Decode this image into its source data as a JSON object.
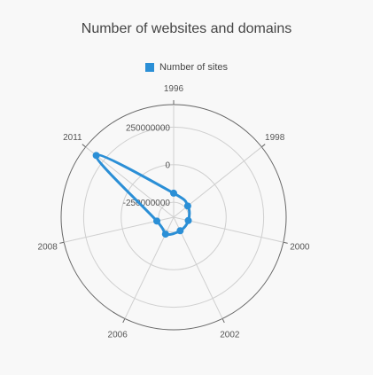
{
  "chart_data": {
    "type": "line",
    "subtype": "polar",
    "title": "Number of websites and domains",
    "categories": [
      "1996",
      "1998",
      "2000",
      "2002",
      "2006",
      "2008",
      "2011"
    ],
    "series": [
      {
        "name": "Number of sites",
        "color": "#2b8fd6",
        "values": [
          -190000000,
          -230000000,
          -250000000,
          -250000000,
          -225000000,
          -235000000,
          310000000
        ]
      }
    ],
    "radial_axis": {
      "min": -350000000,
      "max": 400000000,
      "ticks": [
        -250000000,
        0,
        250000000
      ],
      "tick_labels": [
        "-250000000",
        "0",
        "250000000"
      ]
    },
    "grid": true,
    "smooth": true,
    "legend_position": "top-center"
  }
}
